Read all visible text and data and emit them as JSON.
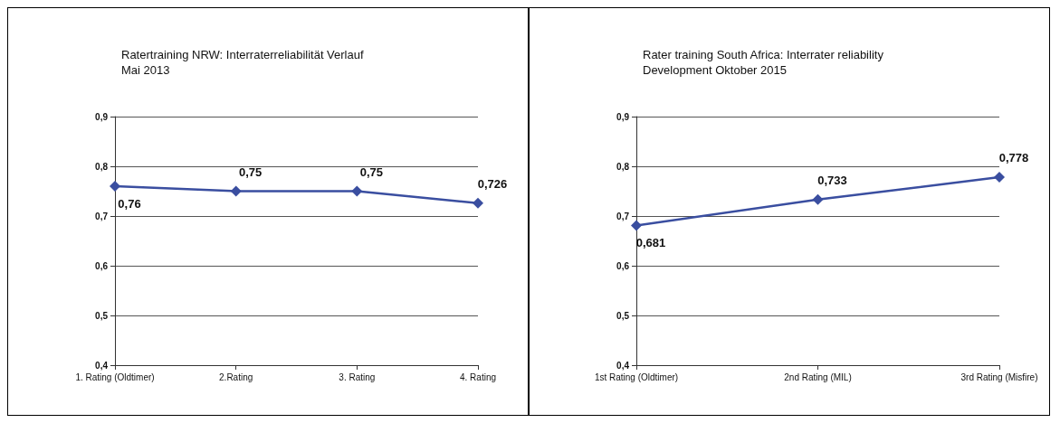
{
  "chart_data": [
    {
      "type": "line",
      "title": "Ratertraining NRW: Interraterreliabilität Verlauf\nMai 2013",
      "categories": [
        "1. Rating (Oldtimer)",
        "2.Rating",
        "3. Rating",
        "4. Rating"
      ],
      "series": [
        {
          "color": "#3a4ea0",
          "values": [
            0.76,
            0.75,
            0.75,
            0.726
          ],
          "value_labels": [
            "0,76",
            "0,75",
            "0,75",
            "0,726"
          ]
        }
      ],
      "ylim": [
        0.4,
        0.9
      ],
      "yticks": [
        {
          "value": 0.4,
          "label": "0,4"
        },
        {
          "value": 0.5,
          "label": "0,5"
        },
        {
          "value": 0.6,
          "label": "0,6"
        },
        {
          "value": 0.7,
          "label": "0,7"
        },
        {
          "value": 0.8,
          "label": "0,8"
        },
        {
          "value": 0.9,
          "label": "0,9"
        }
      ],
      "grid": "y",
      "marker": "diamond",
      "line_style": "solid"
    },
    {
      "type": "line",
      "title": "Rater training South Africa: Interrater reliability\nDevelopment Oktober 2015",
      "categories": [
        "1st Rating (Oldtimer)",
        "2nd Rating (MIL)",
        "3rd Rating (Misfire)"
      ],
      "series": [
        {
          "color": "#3a4ea0",
          "values": [
            0.681,
            0.733,
            0.778
          ],
          "value_labels": [
            "0,681",
            "0,733",
            "0,778"
          ]
        }
      ],
      "ylim": [
        0.4,
        0.9
      ],
      "yticks": [
        {
          "value": 0.4,
          "label": "0,4"
        },
        {
          "value": 0.5,
          "label": "0,5"
        },
        {
          "value": 0.6,
          "label": "0,6"
        },
        {
          "value": 0.7,
          "label": "0,7"
        },
        {
          "value": 0.8,
          "label": "0,8"
        },
        {
          "value": 0.9,
          "label": "0,9"
        }
      ],
      "grid": "y",
      "marker": "diamond",
      "line_style": "solid"
    }
  ]
}
